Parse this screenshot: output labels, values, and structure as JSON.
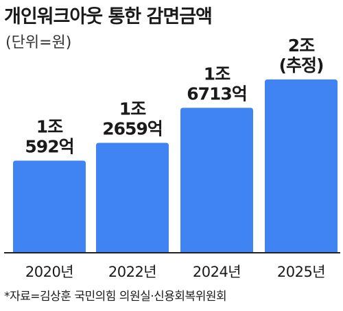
{
  "title": "개인워크아웃 통한 감면금액",
  "unit": "(단위=원)",
  "source": "*자료=김상훈 국민의힘 의원실·신용회복위원회",
  "colors": {
    "bar": "#3f84f2",
    "axis": "#222222",
    "text": "#1a1a1a"
  },
  "chart_data": {
    "type": "bar",
    "categories": [
      "2020년",
      "2022년",
      "2024년",
      "2025년"
    ],
    "values": [
      10592,
      12659,
      16713,
      20000
    ],
    "value_unit": "억원",
    "data_labels": [
      [
        "1조",
        "592억"
      ],
      [
        "1조",
        "2659억"
      ],
      [
        "1조",
        "6713억"
      ],
      [
        "2조",
        "(추정)"
      ]
    ],
    "ylim": [
      0,
      20000
    ]
  }
}
